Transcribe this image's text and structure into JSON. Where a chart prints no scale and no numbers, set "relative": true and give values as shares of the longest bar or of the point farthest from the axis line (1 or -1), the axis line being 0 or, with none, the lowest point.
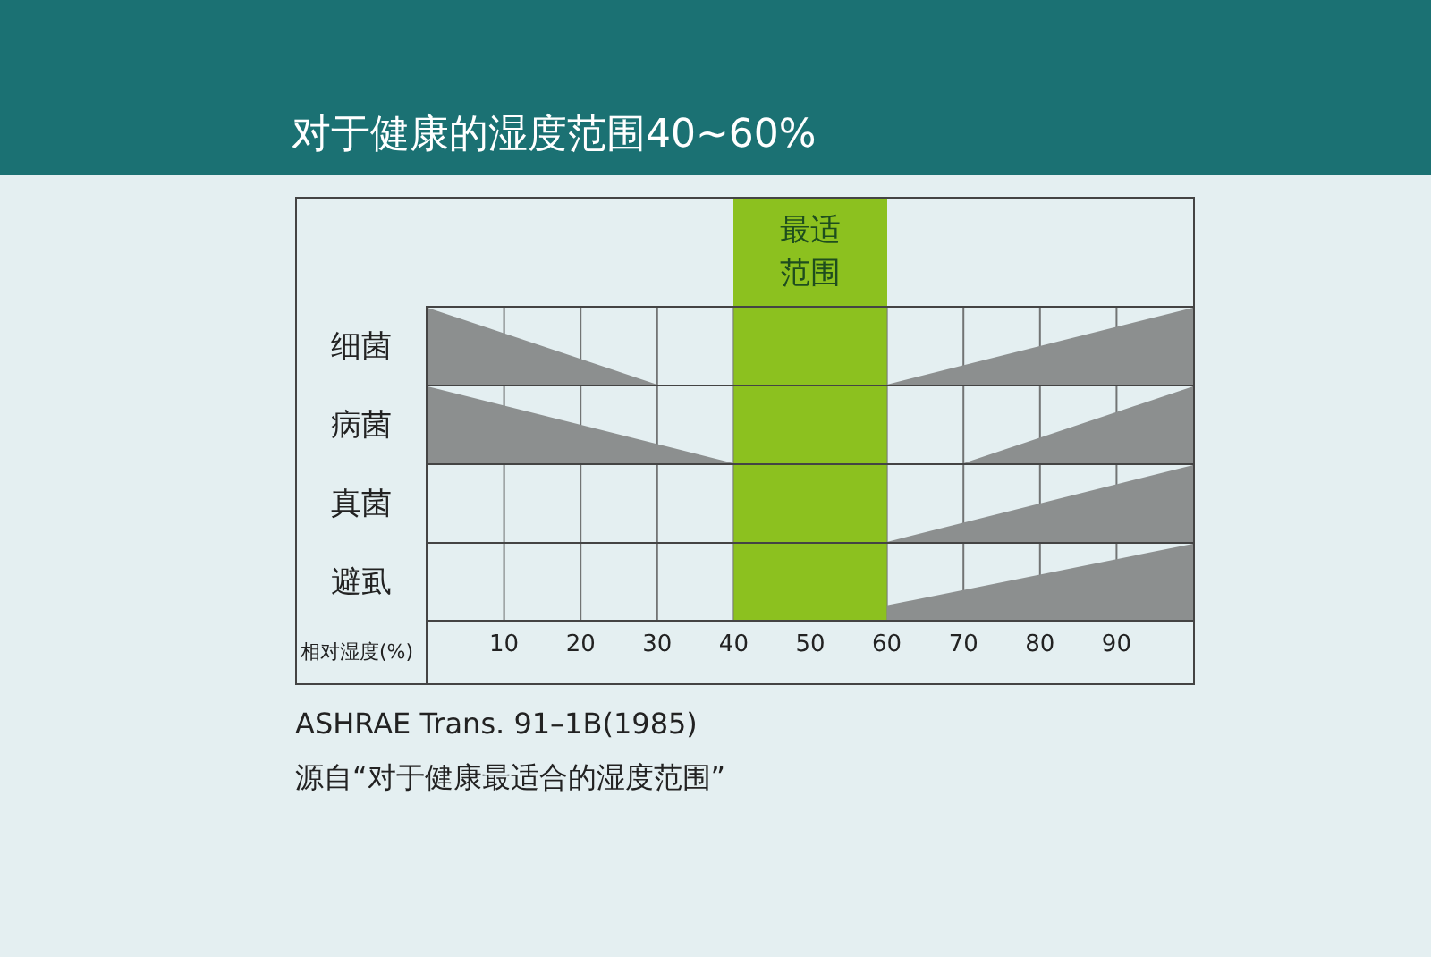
{
  "chart_data": [
    {
      "type": "area",
      "title": "对于健康的湿度范围40~60%",
      "ylabel": "细菌",
      "relative": true,
      "xlim": [
        0,
        100
      ],
      "xticks": [
        10,
        20,
        30,
        40,
        50,
        60,
        70,
        80,
        90
      ],
      "grid": "x",
      "tick_labels": false,
      "legend": false,
      "bands": [
        {
          "axis": "x",
          "from": 40,
          "to": 60,
          "label": "最适范围",
          "color": "#8cc11f"
        }
      ],
      "series": [
        {
          "color": "#8c8f8f",
          "x": [
            0,
            30
          ],
          "values": [
            1,
            0
          ]
        },
        {
          "color": "#8c8f8f",
          "x": [
            60,
            100
          ],
          "values": [
            0,
            1
          ]
        }
      ]
    },
    {
      "type": "area",
      "ylabel": "病菌",
      "relative": true,
      "xlim": [
        0,
        100
      ],
      "xticks": [
        10,
        20,
        30,
        40,
        50,
        60,
        70,
        80,
        90
      ],
      "grid": "x",
      "tick_labels": false,
      "legend": false,
      "bands": [
        {
          "axis": "x",
          "from": 40,
          "to": 60,
          "color": "#8cc11f"
        }
      ],
      "series": [
        {
          "color": "#8c8f8f",
          "x": [
            0,
            40
          ],
          "values": [
            1,
            0
          ]
        },
        {
          "color": "#8c8f8f",
          "x": [
            70,
            100
          ],
          "values": [
            0,
            1
          ]
        }
      ]
    },
    {
      "type": "area",
      "ylabel": "真菌",
      "relative": true,
      "xlim": [
        0,
        100
      ],
      "xticks": [
        10,
        20,
        30,
        40,
        50,
        60,
        70,
        80,
        90
      ],
      "grid": "x",
      "tick_labels": false,
      "legend": false,
      "bands": [
        {
          "axis": "x",
          "from": 40,
          "to": 60,
          "color": "#8cc11f"
        }
      ],
      "series": [
        {
          "color": "#8c8f8f",
          "x": [
            60,
            100
          ],
          "values": [
            0,
            1
          ]
        }
      ]
    },
    {
      "type": "area",
      "ylabel": "避虱",
      "xlabel": "相对湿度(%)",
      "relative": true,
      "xlim": [
        0,
        100
      ],
      "xticks": [
        10,
        20,
        30,
        40,
        50,
        60,
        70,
        80,
        90
      ],
      "grid": "x",
      "tick_labels": "x",
      "legend": false,
      "bands": [
        {
          "axis": "x",
          "from": 40,
          "to": 60,
          "color": "#8cc11f"
        }
      ],
      "annotations": [
        "ASHRAE Trans. 91–1B(1985)",
        "源自“对于健康最适合的湿度范围”"
      ],
      "series": [
        {
          "color": "#8c8f8f",
          "x": [
            60,
            100
          ],
          "values": [
            0.2,
            1
          ]
        }
      ]
    }
  ]
}
